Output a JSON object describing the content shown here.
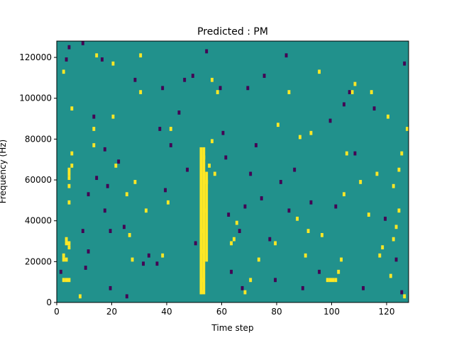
{
  "chart_data": {
    "type": "heatmap",
    "title": "Predicted : PM",
    "xlabel": "Time step",
    "ylabel": "Frequency (Hz)",
    "xlim": [
      0,
      128
    ],
    "ylim": [
      0,
      128000
    ],
    "x_ticks": [
      0,
      20,
      40,
      60,
      80,
      100,
      120
    ],
    "y_ticks": [
      0,
      20000,
      40000,
      60000,
      80000,
      100000,
      120000
    ],
    "y_tick_labels": [
      "0",
      "20000",
      "40000",
      "60000",
      "80000",
      "100000",
      "120000"
    ],
    "grid": false,
    "colors": {
      "background": "#21918c",
      "low": "#440154",
      "high": "#fde725"
    },
    "cell_size": {
      "time_steps": 1,
      "hz": 2000
    },
    "cells": [
      {
        "t": 2,
        "f": 20000,
        "v": "high"
      },
      {
        "t": 2,
        "f": 22000,
        "v": "high"
      },
      {
        "t": 3,
        "f": 20000,
        "v": "high"
      },
      {
        "t": 3,
        "f": 28000,
        "v": "high"
      },
      {
        "t": 4,
        "f": 26000,
        "v": "high"
      },
      {
        "t": 4,
        "f": 28000,
        "v": "high"
      },
      {
        "t": 3,
        "f": 30000,
        "v": "high"
      },
      {
        "t": 4,
        "f": 60000,
        "v": "high"
      },
      {
        "t": 4,
        "f": 62000,
        "v": "high"
      },
      {
        "t": 4,
        "f": 64000,
        "v": "high"
      },
      {
        "t": 5,
        "f": 66000,
        "v": "high"
      },
      {
        "t": 4,
        "f": 56000,
        "v": "high"
      },
      {
        "t": 4,
        "f": 48000,
        "v": "high"
      },
      {
        "t": 5,
        "f": 72000,
        "v": "high"
      },
      {
        "t": 2,
        "f": 10000,
        "v": "high"
      },
      {
        "t": 3,
        "f": 10000,
        "v": "high"
      },
      {
        "t": 4,
        "f": 10000,
        "v": "high"
      },
      {
        "t": 2,
        "f": 112000,
        "v": "high"
      },
      {
        "t": 5,
        "f": 94000,
        "v": "high"
      },
      {
        "t": 8,
        "f": 2000,
        "v": "high"
      },
      {
        "t": 13,
        "f": 84000,
        "v": "high"
      },
      {
        "t": 13,
        "f": 76000,
        "v": "high"
      },
      {
        "t": 14,
        "f": 120000,
        "v": "high"
      },
      {
        "t": 20,
        "f": 90000,
        "v": "high"
      },
      {
        "t": 21,
        "f": 66000,
        "v": "high"
      },
      {
        "t": 25,
        "f": 52000,
        "v": "high"
      },
      {
        "t": 20,
        "f": 116000,
        "v": "high"
      },
      {
        "t": 26,
        "f": 32000,
        "v": "high"
      },
      {
        "t": 27,
        "f": 20000,
        "v": "high"
      },
      {
        "t": 28,
        "f": 58000,
        "v": "high"
      },
      {
        "t": 30,
        "f": 120000,
        "v": "high"
      },
      {
        "t": 30,
        "f": 102000,
        "v": "high"
      },
      {
        "t": 32,
        "f": 44000,
        "v": "high"
      },
      {
        "t": 38,
        "f": 22000,
        "v": "high"
      },
      {
        "t": 40,
        "f": 48000,
        "v": "high"
      },
      {
        "t": 41,
        "f": 84000,
        "v": "high"
      },
      {
        "t": 52,
        "f": 4000,
        "v": "high"
      },
      {
        "t": 52,
        "f": 10000,
        "v": "high"
      },
      {
        "t": 52,
        "f": 24000,
        "v": "high"
      },
      {
        "t": 52,
        "f": 34000,
        "v": "high"
      },
      {
        "t": 53,
        "f": 44000,
        "v": "high"
      },
      {
        "t": 53,
        "f": 70000,
        "v": "high"
      },
      {
        "t": 54,
        "f": 58000,
        "v": "high"
      },
      {
        "t": 55,
        "f": 66000,
        "v": "high"
      },
      {
        "t": 56,
        "f": 78000,
        "v": "high"
      },
      {
        "t": 57,
        "f": 62000,
        "v": "high"
      },
      {
        "t": 56,
        "f": 108000,
        "v": "high"
      },
      {
        "t": 58,
        "f": 102000,
        "v": "high"
      },
      {
        "t": 63,
        "f": 28000,
        "v": "high"
      },
      {
        "t": 64,
        "f": 30000,
        "v": "high"
      },
      {
        "t": 65,
        "f": 38000,
        "v": "high"
      },
      {
        "t": 68,
        "f": 4000,
        "v": "high"
      },
      {
        "t": 70,
        "f": 10000,
        "v": "high"
      },
      {
        "t": 73,
        "f": 20000,
        "v": "high"
      },
      {
        "t": 79,
        "f": 28000,
        "v": "high"
      },
      {
        "t": 80,
        "f": 86000,
        "v": "high"
      },
      {
        "t": 84,
        "f": 102000,
        "v": "high"
      },
      {
        "t": 87,
        "f": 40000,
        "v": "high"
      },
      {
        "t": 88,
        "f": 80000,
        "v": "high"
      },
      {
        "t": 90,
        "f": 22000,
        "v": "high"
      },
      {
        "t": 91,
        "f": 34000,
        "v": "high"
      },
      {
        "t": 92,
        "f": 82000,
        "v": "high"
      },
      {
        "t": 95,
        "f": 112000,
        "v": "high"
      },
      {
        "t": 96,
        "f": 32000,
        "v": "high"
      },
      {
        "t": 98,
        "f": 10000,
        "v": "high"
      },
      {
        "t": 99,
        "f": 10000,
        "v": "high"
      },
      {
        "t": 100,
        "f": 10000,
        "v": "high"
      },
      {
        "t": 101,
        "f": 10000,
        "v": "high"
      },
      {
        "t": 102,
        "f": 14000,
        "v": "high"
      },
      {
        "t": 103,
        "f": 20000,
        "v": "high"
      },
      {
        "t": 104,
        "f": 52000,
        "v": "high"
      },
      {
        "t": 105,
        "f": 72000,
        "v": "high"
      },
      {
        "t": 107,
        "f": 102000,
        "v": "high"
      },
      {
        "t": 108,
        "f": 106000,
        "v": "high"
      },
      {
        "t": 110,
        "f": 58000,
        "v": "high"
      },
      {
        "t": 113,
        "f": 42000,
        "v": "high"
      },
      {
        "t": 114,
        "f": 102000,
        "v": "high"
      },
      {
        "t": 116,
        "f": 62000,
        "v": "high"
      },
      {
        "t": 117,
        "f": 22000,
        "v": "high"
      },
      {
        "t": 120,
        "f": 90000,
        "v": "high"
      },
      {
        "t": 122,
        "f": 56000,
        "v": "high"
      },
      {
        "t": 122,
        "f": 30000,
        "v": "high"
      },
      {
        "t": 123,
        "f": 36000,
        "v": "high"
      },
      {
        "t": 124,
        "f": 44000,
        "v": "high"
      },
      {
        "t": 124,
        "f": 64000,
        "v": "high"
      },
      {
        "t": 125,
        "f": 72000,
        "v": "high"
      },
      {
        "t": 126,
        "f": 2000,
        "v": "high"
      },
      {
        "t": 127,
        "f": 84000,
        "v": "high"
      },
      {
        "t": 121,
        "f": 12000,
        "v": "high"
      },
      {
        "t": 118,
        "f": 26000,
        "v": "high"
      },
      {
        "t": 1,
        "f": 14000,
        "v": "low"
      },
      {
        "t": 3,
        "f": 118000,
        "v": "low"
      },
      {
        "t": 4,
        "f": 124000,
        "v": "low"
      },
      {
        "t": 9,
        "f": 126000,
        "v": "low"
      },
      {
        "t": 9,
        "f": 34000,
        "v": "low"
      },
      {
        "t": 10,
        "f": 16000,
        "v": "low"
      },
      {
        "t": 11,
        "f": 24000,
        "v": "low"
      },
      {
        "t": 11,
        "f": 52000,
        "v": "low"
      },
      {
        "t": 13,
        "f": 90000,
        "v": "low"
      },
      {
        "t": 14,
        "f": 60000,
        "v": "low"
      },
      {
        "t": 16,
        "f": 118000,
        "v": "low"
      },
      {
        "t": 17,
        "f": 74000,
        "v": "low"
      },
      {
        "t": 17,
        "f": 44000,
        "v": "low"
      },
      {
        "t": 18,
        "f": 56000,
        "v": "low"
      },
      {
        "t": 19,
        "f": 34000,
        "v": "low"
      },
      {
        "t": 19,
        "f": 6000,
        "v": "low"
      },
      {
        "t": 22,
        "f": 68000,
        "v": "low"
      },
      {
        "t": 24,
        "f": 36000,
        "v": "low"
      },
      {
        "t": 25,
        "f": 2000,
        "v": "low"
      },
      {
        "t": 28,
        "f": 108000,
        "v": "low"
      },
      {
        "t": 31,
        "f": 18000,
        "v": "low"
      },
      {
        "t": 33,
        "f": 22000,
        "v": "low"
      },
      {
        "t": 36,
        "f": 18000,
        "v": "low"
      },
      {
        "t": 37,
        "f": 84000,
        "v": "low"
      },
      {
        "t": 38,
        "f": 104000,
        "v": "low"
      },
      {
        "t": 39,
        "f": 54000,
        "v": "low"
      },
      {
        "t": 41,
        "f": 76000,
        "v": "low"
      },
      {
        "t": 44,
        "f": 92000,
        "v": "low"
      },
      {
        "t": 46,
        "f": 108000,
        "v": "low"
      },
      {
        "t": 47,
        "f": 64000,
        "v": "low"
      },
      {
        "t": 49,
        "f": 110000,
        "v": "low"
      },
      {
        "t": 50,
        "f": 28000,
        "v": "low"
      },
      {
        "t": 54,
        "f": 122000,
        "v": "low"
      },
      {
        "t": 59,
        "f": 104000,
        "v": "low"
      },
      {
        "t": 60,
        "f": 82000,
        "v": "low"
      },
      {
        "t": 61,
        "f": 70000,
        "v": "low"
      },
      {
        "t": 62,
        "f": 42000,
        "v": "low"
      },
      {
        "t": 63,
        "f": 14000,
        "v": "low"
      },
      {
        "t": 66,
        "f": 34000,
        "v": "low"
      },
      {
        "t": 67,
        "f": 6000,
        "v": "low"
      },
      {
        "t": 68,
        "f": 46000,
        "v": "low"
      },
      {
        "t": 69,
        "f": 104000,
        "v": "low"
      },
      {
        "t": 70,
        "f": 62000,
        "v": "low"
      },
      {
        "t": 72,
        "f": 76000,
        "v": "low"
      },
      {
        "t": 74,
        "f": 50000,
        "v": "low"
      },
      {
        "t": 75,
        "f": 110000,
        "v": "low"
      },
      {
        "t": 77,
        "f": 30000,
        "v": "low"
      },
      {
        "t": 79,
        "f": 10000,
        "v": "low"
      },
      {
        "t": 81,
        "f": 58000,
        "v": "low"
      },
      {
        "t": 83,
        "f": 120000,
        "v": "low"
      },
      {
        "t": 84,
        "f": 44000,
        "v": "low"
      },
      {
        "t": 86,
        "f": 64000,
        "v": "low"
      },
      {
        "t": 89,
        "f": 6000,
        "v": "low"
      },
      {
        "t": 92,
        "f": 48000,
        "v": "low"
      },
      {
        "t": 95,
        "f": 14000,
        "v": "low"
      },
      {
        "t": 99,
        "f": 88000,
        "v": "low"
      },
      {
        "t": 101,
        "f": 46000,
        "v": "low"
      },
      {
        "t": 104,
        "f": 96000,
        "v": "low"
      },
      {
        "t": 106,
        "f": 102000,
        "v": "low"
      },
      {
        "t": 108,
        "f": 72000,
        "v": "low"
      },
      {
        "t": 111,
        "f": 6000,
        "v": "low"
      },
      {
        "t": 115,
        "f": 94000,
        "v": "low"
      },
      {
        "t": 119,
        "f": 40000,
        "v": "low"
      },
      {
        "t": 123,
        "f": 20000,
        "v": "low"
      },
      {
        "t": 126,
        "f": 116000,
        "v": "low"
      },
      {
        "t": 125,
        "f": 4000,
        "v": "low"
      }
    ],
    "column_runs": [
      {
        "t": 52,
        "from": 4000,
        "to": 76000,
        "v": "high"
      },
      {
        "t": 53,
        "from": 4000,
        "to": 76000,
        "v": "high"
      },
      {
        "t": 54,
        "from": 20000,
        "to": 64000,
        "v": "high"
      }
    ]
  }
}
